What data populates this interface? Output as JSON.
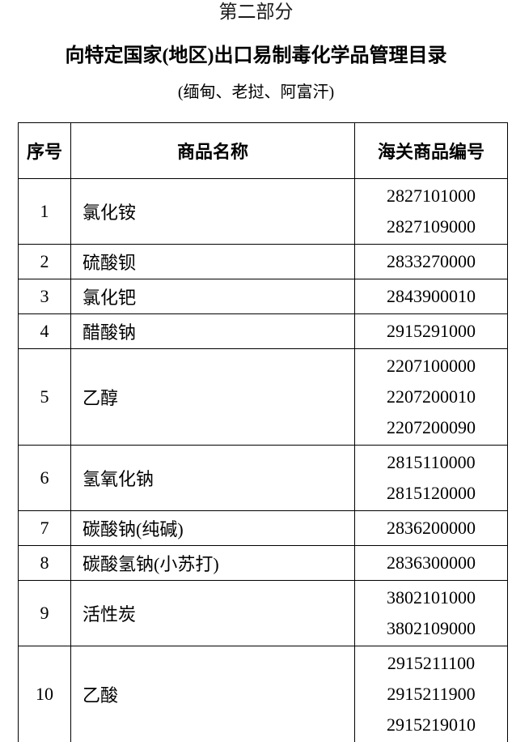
{
  "page": {
    "section_label": "第二部分",
    "title": "向特定国家(地区)出口易制毒化学品管理目录",
    "subtitle": "(缅甸、老挝、阿富汗)"
  },
  "table": {
    "headers": [
      "序号",
      "商品名称",
      "海关商品编号"
    ],
    "rows": [
      {
        "no": "1",
        "name": "氯化铵",
        "codes": [
          "2827101000",
          "2827109000"
        ]
      },
      {
        "no": "2",
        "name": "硫酸钡",
        "codes": [
          "2833270000"
        ]
      },
      {
        "no": "3",
        "name": "氯化钯",
        "codes": [
          "2843900010"
        ]
      },
      {
        "no": "4",
        "name": "醋酸钠",
        "codes": [
          "2915291000"
        ]
      },
      {
        "no": "5",
        "name": "乙醇",
        "codes": [
          "2207100000",
          "2207200010",
          "2207200090"
        ]
      },
      {
        "no": "6",
        "name": "氢氧化钠",
        "codes": [
          "2815110000",
          "2815120000"
        ]
      },
      {
        "no": "7",
        "name": "碳酸钠(纯碱)",
        "codes": [
          "2836200000"
        ]
      },
      {
        "no": "8",
        "name": "碳酸氢钠(小苏打)",
        "codes": [
          "2836300000"
        ]
      },
      {
        "no": "9",
        "name": "活性炭",
        "codes": [
          "3802101000",
          "3802109000"
        ]
      },
      {
        "no": "10",
        "name": "乙酸",
        "codes": [
          "2915211100",
          "2915211900",
          "2915219010"
        ]
      }
    ]
  }
}
